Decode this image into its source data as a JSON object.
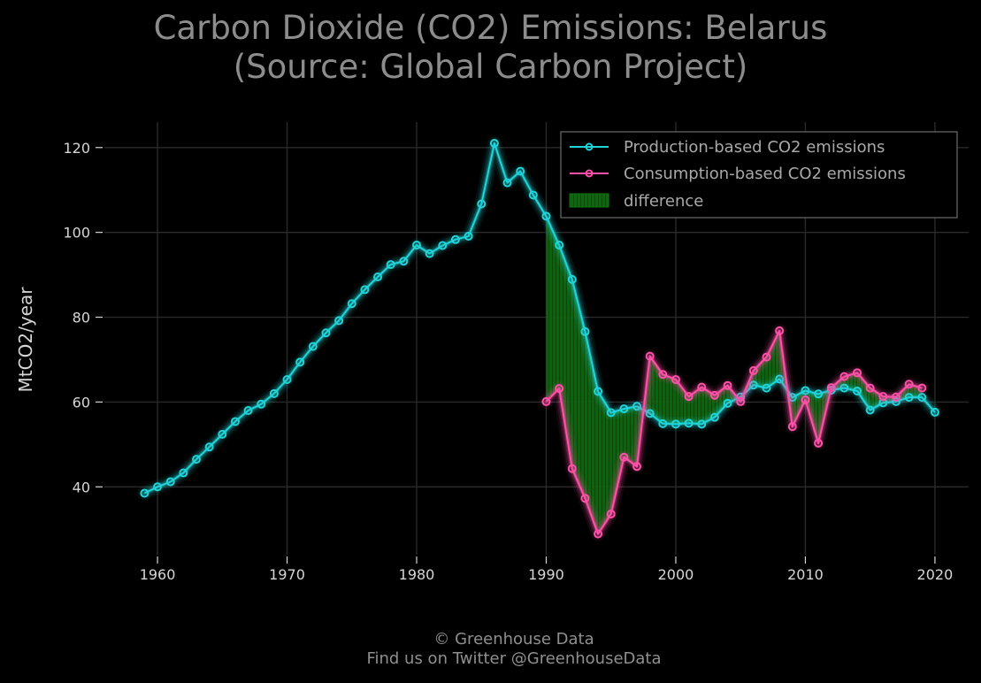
{
  "title_line1": "Carbon Dioxide (CO2) Emissions: Belarus",
  "title_line2": "(Source: Global Carbon Project)",
  "footer_line1": "© Greenhouse Data",
  "footer_line2": "Find us on Twitter @GreenhouseData",
  "colors": {
    "background": "#000000",
    "production": "#1fd4d8",
    "consumption": "#ff4fa8",
    "difference": "#0a6a0a",
    "grid": "#2a2a2a",
    "legend_border": "#6a6a6a"
  },
  "chart_data": {
    "type": "line",
    "title": "Carbon Dioxide (CO2) Emissions: Belarus (Source: Global Carbon Project)",
    "xlabel": "",
    "ylabel": "MtCO2/year",
    "xlim": [
      1955.9,
      2022.6
    ],
    "ylim": [
      24,
      126
    ],
    "x_ticks": [
      1960,
      1970,
      1980,
      1990,
      2000,
      2010,
      2020
    ],
    "y_ticks": [
      40,
      60,
      80,
      100,
      120
    ],
    "grid": true,
    "legend_position": "top-right",
    "legend": [
      "Production-based CO2 emissions",
      "Consumption-based CO2 emissions",
      "difference"
    ],
    "series": [
      {
        "name": "Production-based CO2 emissions",
        "color": "#1fd4d8",
        "x": [
          1959,
          1960,
          1961,
          1962,
          1963,
          1964,
          1965,
          1966,
          1967,
          1968,
          1969,
          1970,
          1971,
          1972,
          1973,
          1974,
          1975,
          1976,
          1977,
          1978,
          1979,
          1980,
          1981,
          1982,
          1983,
          1984,
          1985,
          1986,
          1987,
          1988,
          1989,
          1990,
          1991,
          1992,
          1993,
          1994,
          1995,
          1996,
          1997,
          1998,
          1999,
          2000,
          2001,
          2002,
          2003,
          2004,
          2005,
          2006,
          2007,
          2008,
          2009,
          2010,
          2011,
          2012,
          2013,
          2014,
          2015,
          2016,
          2017,
          2018,
          2019,
          2020
        ],
        "y": [
          38.5,
          40.0,
          41.2,
          43.3,
          46.5,
          49.4,
          52.4,
          55.4,
          58.0,
          59.5,
          62.0,
          65.3,
          69.4,
          73.1,
          76.3,
          79.2,
          83.2,
          86.5,
          89.5,
          92.4,
          93.2,
          97.0,
          95.0,
          96.9,
          98.3,
          99.1,
          106.7,
          121.0,
          111.7,
          114.4,
          108.8,
          103.8,
          97.0,
          88.9,
          76.6,
          62.5,
          57.5,
          58.4,
          59.0,
          57.3,
          54.9,
          54.8,
          55.0,
          54.8,
          56.4,
          59.7,
          61.2,
          64.0,
          63.3,
          65.4,
          61.1,
          62.7,
          61.9,
          62.8,
          63.3,
          62.6,
          58.1,
          59.8,
          60.1,
          61.1,
          61.1,
          57.6
        ]
      },
      {
        "name": "Consumption-based CO2 emissions",
        "color": "#ff4fa8",
        "x": [
          1990,
          1991,
          1992,
          1993,
          1994,
          1995,
          1996,
          1997,
          1998,
          1999,
          2000,
          2001,
          2002,
          2003,
          2004,
          2005,
          2006,
          2007,
          2008,
          2009,
          2010,
          2011,
          2012,
          2013,
          2014,
          2015,
          2016,
          2017,
          2018,
          2019
        ],
        "y": [
          60.1,
          63.2,
          44.3,
          37.3,
          28.9,
          33.6,
          47.0,
          44.8,
          70.8,
          66.5,
          65.3,
          61.3,
          63.5,
          61.6,
          63.9,
          60.1,
          67.4,
          70.6,
          76.8,
          54.2,
          60.5,
          50.3,
          63.4,
          66.0,
          66.9,
          63.3,
          61.3,
          61.2,
          64.2,
          63.3
        ]
      }
    ]
  }
}
